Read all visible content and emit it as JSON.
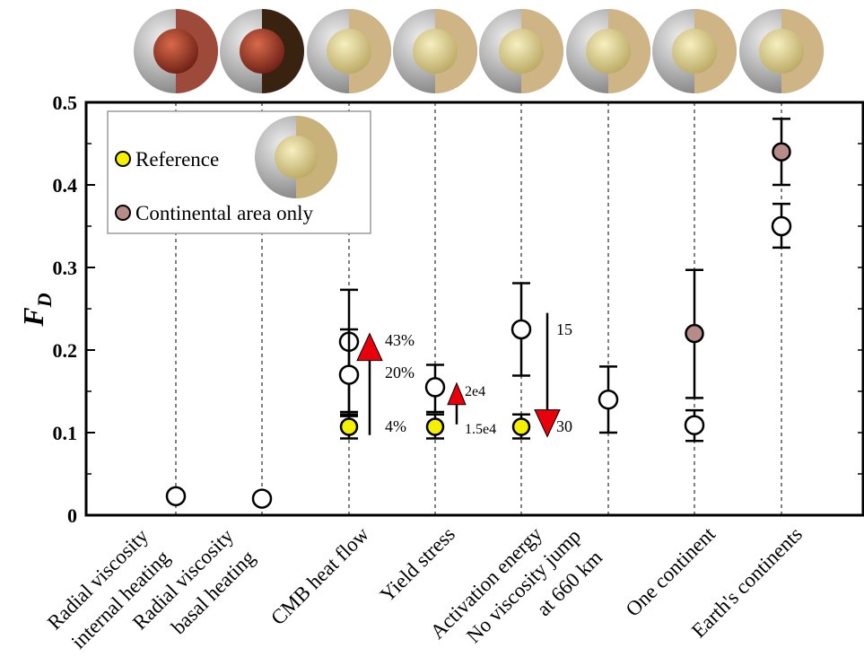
{
  "chart_data": {
    "type": "scatter",
    "ylabel": "F",
    "ylabel_sub": "D",
    "ylim": [
      0,
      0.5
    ],
    "yticks": [
      "0",
      "0.1",
      "0.2",
      "0.3",
      "0.4",
      "0.5"
    ],
    "ytick_values": [
      0,
      0.1,
      0.2,
      0.3,
      0.4,
      0.5
    ],
    "categories": [
      [
        "Radial viscosity",
        "internal heating"
      ],
      [
        "Radial viscosity",
        "basal heating"
      ],
      [
        "CMB heat flow"
      ],
      [
        "Yield stress"
      ],
      [
        "Activation energy"
      ],
      [
        "No viscosity jump",
        "at 660 km"
      ],
      [
        "One continent"
      ],
      [
        "Earth's continents"
      ]
    ],
    "legend": [
      {
        "label": "Reference",
        "color": "#f5f000"
      },
      {
        "label": "Continental area only",
        "color": "#b68b88"
      }
    ],
    "points": [
      {
        "cat": 0,
        "y": 0.023,
        "kind": "open"
      },
      {
        "cat": 1,
        "y": 0.02,
        "kind": "open"
      },
      {
        "cat": 2,
        "y": 0.21,
        "err": [
          0.125,
          0.273
        ],
        "kind": "open"
      },
      {
        "cat": 2,
        "y": 0.17,
        "err": [
          0.12,
          0.225
        ],
        "kind": "open"
      },
      {
        "cat": 2,
        "y": 0.107,
        "err": [
          0.093,
          0.122
        ],
        "kind": "reference"
      },
      {
        "cat": 3,
        "y": 0.155,
        "err": [
          0.125,
          0.182
        ],
        "kind": "open"
      },
      {
        "cat": 3,
        "y": 0.107,
        "err": [
          0.093,
          0.122
        ],
        "kind": "reference"
      },
      {
        "cat": 4,
        "y": 0.225,
        "err": [
          0.169,
          0.281
        ],
        "kind": "open"
      },
      {
        "cat": 4,
        "y": 0.107,
        "err": [
          0.093,
          0.122
        ],
        "kind": "reference"
      },
      {
        "cat": 5,
        "y": 0.14,
        "err": [
          0.1,
          0.18
        ],
        "kind": "open"
      },
      {
        "cat": 6,
        "y": 0.22,
        "err": [
          0.142,
          0.297
        ],
        "kind": "continental"
      },
      {
        "cat": 6,
        "y": 0.109,
        "err": [
          0.09,
          0.127
        ],
        "kind": "open"
      },
      {
        "cat": 7,
        "y": 0.44,
        "err": [
          0.4,
          0.48
        ],
        "kind": "continental"
      },
      {
        "cat": 7,
        "y": 0.35,
        "err": [
          0.324,
          0.377
        ],
        "kind": "open"
      }
    ],
    "annotations": [
      {
        "text": "43%",
        "cat": 2,
        "y": 0.21
      },
      {
        "text": "20%",
        "cat": 2,
        "y": 0.17
      },
      {
        "text": "4%",
        "cat": 2,
        "y": 0.107
      },
      {
        "text": "2e4",
        "cat": 3,
        "y": 0.155
      },
      {
        "text": "1.5e4",
        "cat": 3,
        "y": 0.107
      },
      {
        "text": "15",
        "cat": 4,
        "y": 0.225
      },
      {
        "text": "30",
        "cat": 4,
        "y": 0.107
      }
    ],
    "arrows": [
      {
        "cat": 2,
        "from": 0.097,
        "to": 0.22,
        "direction": "up"
      },
      {
        "cat": 3,
        "from": 0.11,
        "to": 0.16,
        "direction": "up"
      },
      {
        "cat": 4,
        "from": 0.245,
        "to": 0.095,
        "direction": "down"
      }
    ],
    "grid": "vertical dashed at categories"
  }
}
